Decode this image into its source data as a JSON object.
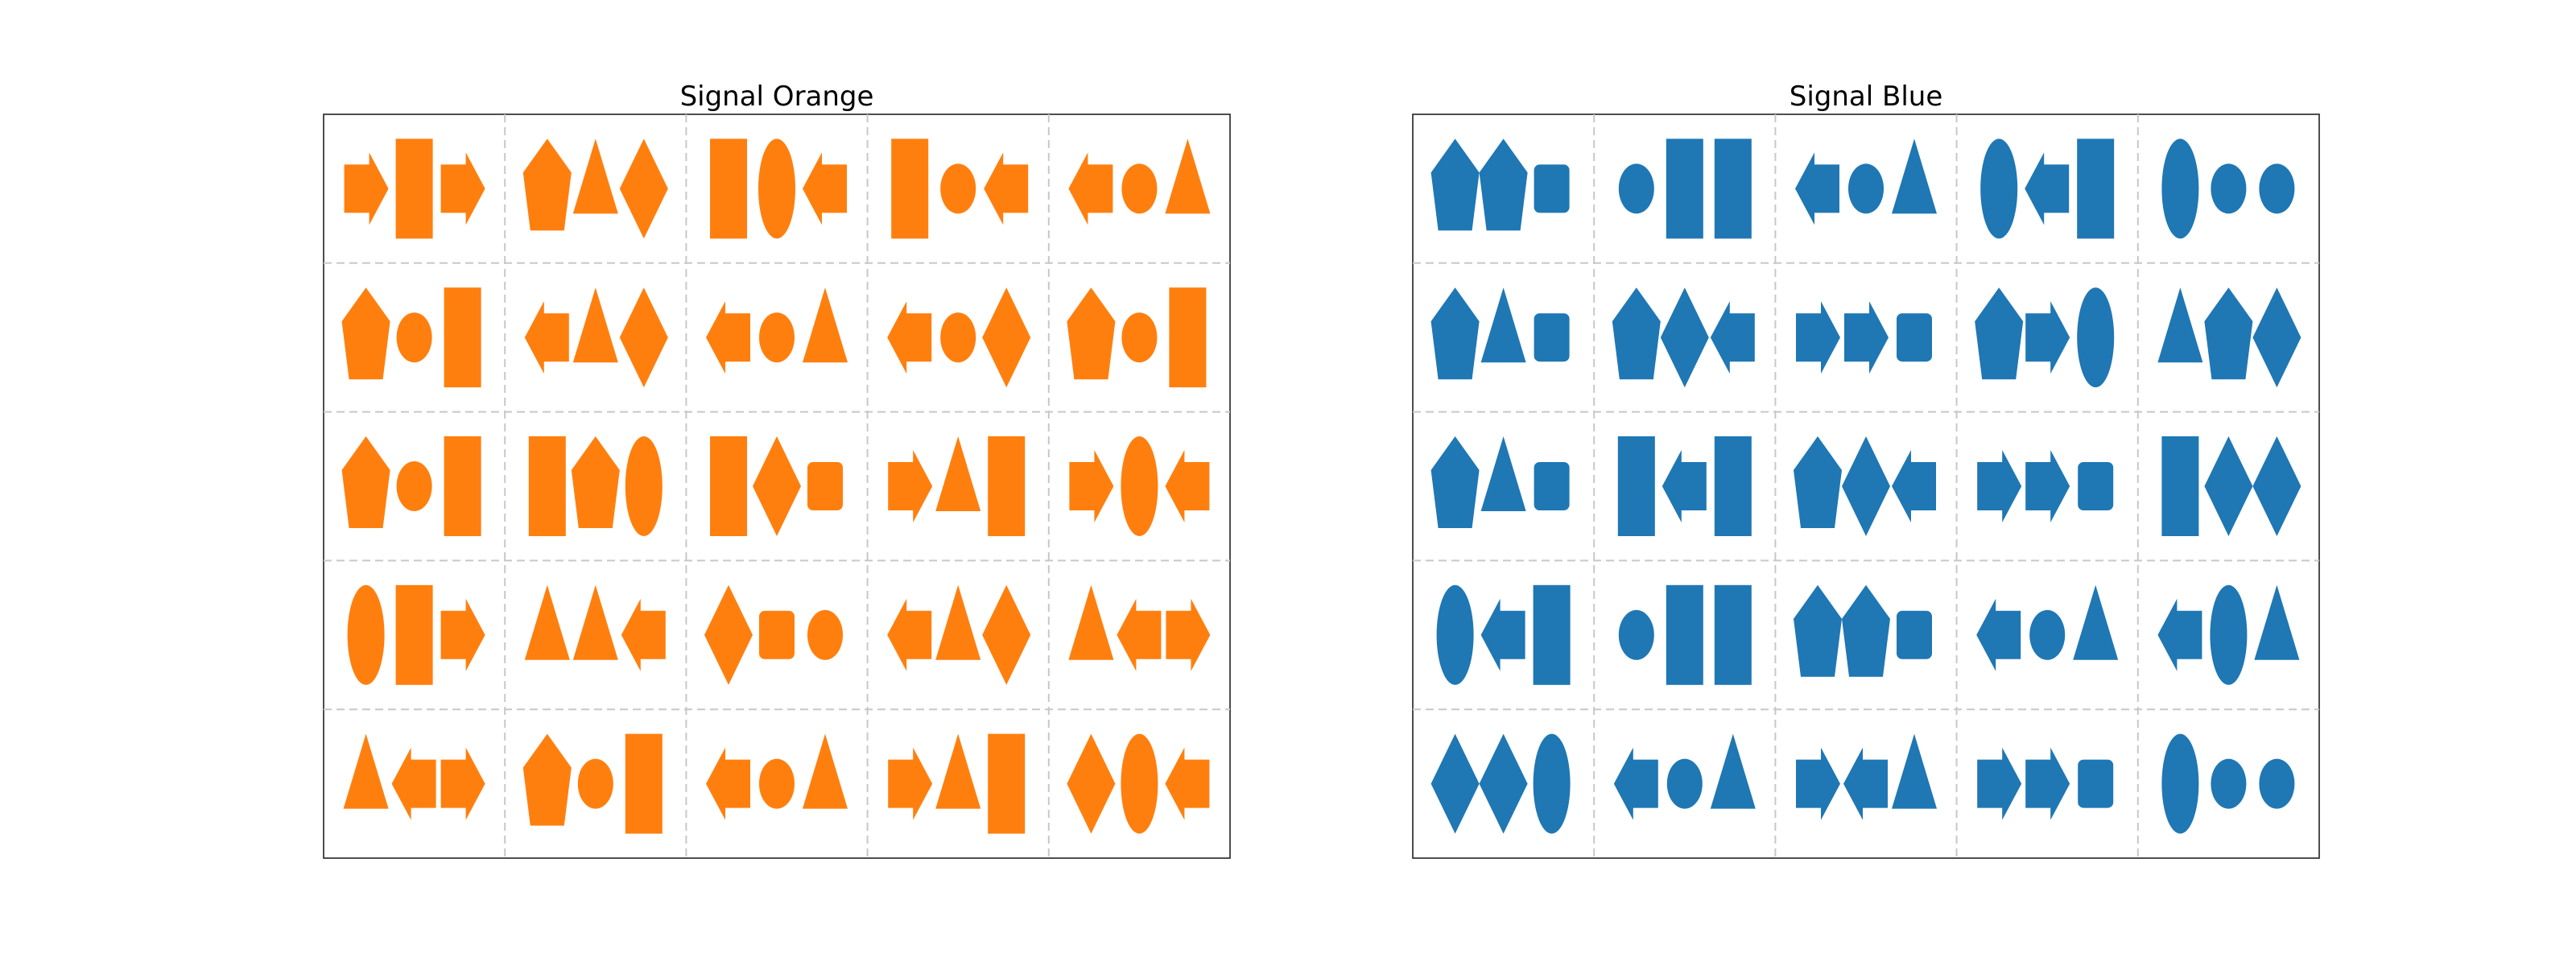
{
  "panels": [
    {
      "title": "Signal Orange",
      "color": "#ff7f0e",
      "rows": [
        [
          [
            "arrow-right",
            "rectangle",
            "arrow-right"
          ],
          [
            "pentagon",
            "triangle",
            "diamond"
          ],
          [
            "rectangle",
            "ellipse",
            "arrow-left"
          ],
          [
            "rectangle",
            "circle",
            "arrow-left"
          ],
          [
            "arrow-left",
            "circle",
            "triangle"
          ]
        ],
        [
          [
            "pentagon",
            "circle",
            "rectangle"
          ],
          [
            "arrow-left",
            "triangle",
            "diamond"
          ],
          [
            "arrow-left",
            "circle",
            "triangle"
          ],
          [
            "arrow-left",
            "circle",
            "diamond"
          ],
          [
            "pentagon",
            "circle",
            "rectangle"
          ]
        ],
        [
          [
            "pentagon",
            "circle",
            "rectangle"
          ],
          [
            "rectangle",
            "pentagon",
            "ellipse"
          ],
          [
            "rectangle",
            "diamond",
            "rounded-rect"
          ],
          [
            "arrow-right",
            "triangle",
            "rectangle"
          ],
          [
            "arrow-right",
            "ellipse",
            "arrow-left"
          ]
        ],
        [
          [
            "ellipse",
            "rectangle",
            "arrow-right"
          ],
          [
            "triangle",
            "triangle",
            "arrow-left"
          ],
          [
            "diamond",
            "rounded-rect",
            "circle"
          ],
          [
            "arrow-left",
            "triangle",
            "diamond"
          ],
          [
            "triangle",
            "arrow-left",
            "arrow-right"
          ]
        ],
        [
          [
            "triangle",
            "arrow-left",
            "arrow-right"
          ],
          [
            "pentagon",
            "circle",
            "rectangle"
          ],
          [
            "arrow-left",
            "circle",
            "triangle"
          ],
          [
            "arrow-right",
            "triangle",
            "rectangle"
          ],
          [
            "diamond",
            "ellipse",
            "arrow-left"
          ]
        ]
      ]
    },
    {
      "title": "Signal Blue",
      "color": "#1f77b4",
      "rows": [
        [
          [
            "pentagon",
            "pentagon",
            "rounded-rect"
          ],
          [
            "circle",
            "rectangle",
            "rectangle"
          ],
          [
            "arrow-left",
            "circle",
            "triangle"
          ],
          [
            "ellipse",
            "arrow-left",
            "rectangle"
          ],
          [
            "ellipse",
            "circle",
            "circle"
          ]
        ],
        [
          [
            "pentagon",
            "triangle",
            "rounded-rect"
          ],
          [
            "pentagon",
            "diamond",
            "arrow-left"
          ],
          [
            "arrow-right",
            "arrow-right",
            "rounded-rect"
          ],
          [
            "pentagon",
            "arrow-right",
            "ellipse"
          ],
          [
            "triangle",
            "pentagon",
            "diamond"
          ]
        ],
        [
          [
            "pentagon",
            "triangle",
            "rounded-rect"
          ],
          [
            "rectangle",
            "arrow-left",
            "rectangle"
          ],
          [
            "pentagon",
            "diamond",
            "arrow-left"
          ],
          [
            "arrow-right",
            "arrow-right",
            "rounded-rect"
          ],
          [
            "rectangle",
            "diamond",
            "diamond"
          ]
        ],
        [
          [
            "ellipse",
            "arrow-left",
            "rectangle"
          ],
          [
            "circle",
            "rectangle",
            "rectangle"
          ],
          [
            "pentagon",
            "pentagon",
            "rounded-rect"
          ],
          [
            "arrow-left",
            "circle",
            "triangle"
          ],
          [
            "arrow-left",
            "ellipse",
            "triangle"
          ]
        ],
        [
          [
            "diamond",
            "diamond",
            "ellipse"
          ],
          [
            "arrow-left",
            "circle",
            "triangle"
          ],
          [
            "arrow-right",
            "arrow-left",
            "triangle"
          ],
          [
            "arrow-right",
            "arrow-right",
            "rounded-rect"
          ],
          [
            "ellipse",
            "circle",
            "circle"
          ]
        ]
      ]
    }
  ]
}
